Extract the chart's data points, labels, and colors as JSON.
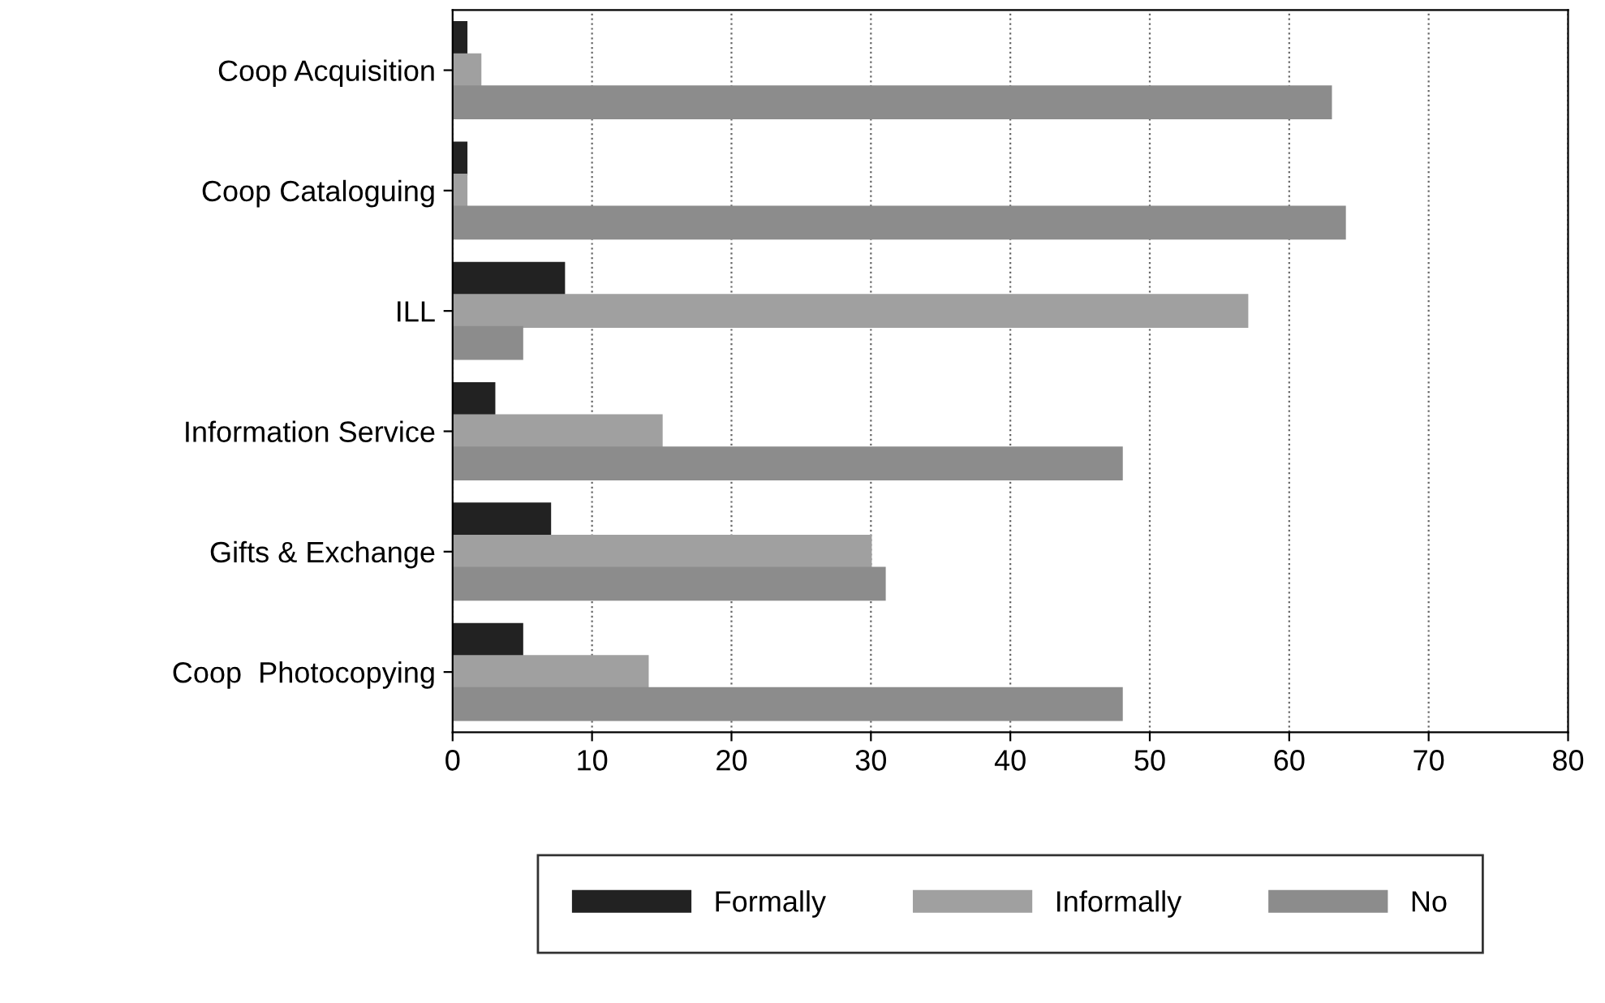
{
  "chart_data": {
    "type": "bar",
    "orientation": "horizontal",
    "categories": [
      "Coop Acquisition",
      "Coop Cataloguing",
      "ILL",
      "Information Service",
      "Gifts & Exchange",
      "Coop  Photocopying"
    ],
    "series": [
      {
        "name": "Formally",
        "color": "#222222",
        "values": [
          1,
          1,
          8,
          3,
          7,
          5
        ]
      },
      {
        "name": "Informally",
        "color": "#a0a0a0",
        "values": [
          2,
          1,
          57,
          15,
          30,
          14
        ]
      },
      {
        "name": "No",
        "color": "#8c8c8c",
        "values": [
          63,
          64,
          5,
          48,
          31,
          48
        ]
      }
    ],
    "xlim": [
      0,
      80
    ],
    "xticks": [
      0,
      10,
      20,
      30,
      40,
      50,
      60,
      70,
      80
    ],
    "grid": "x",
    "legend": "bottom"
  }
}
